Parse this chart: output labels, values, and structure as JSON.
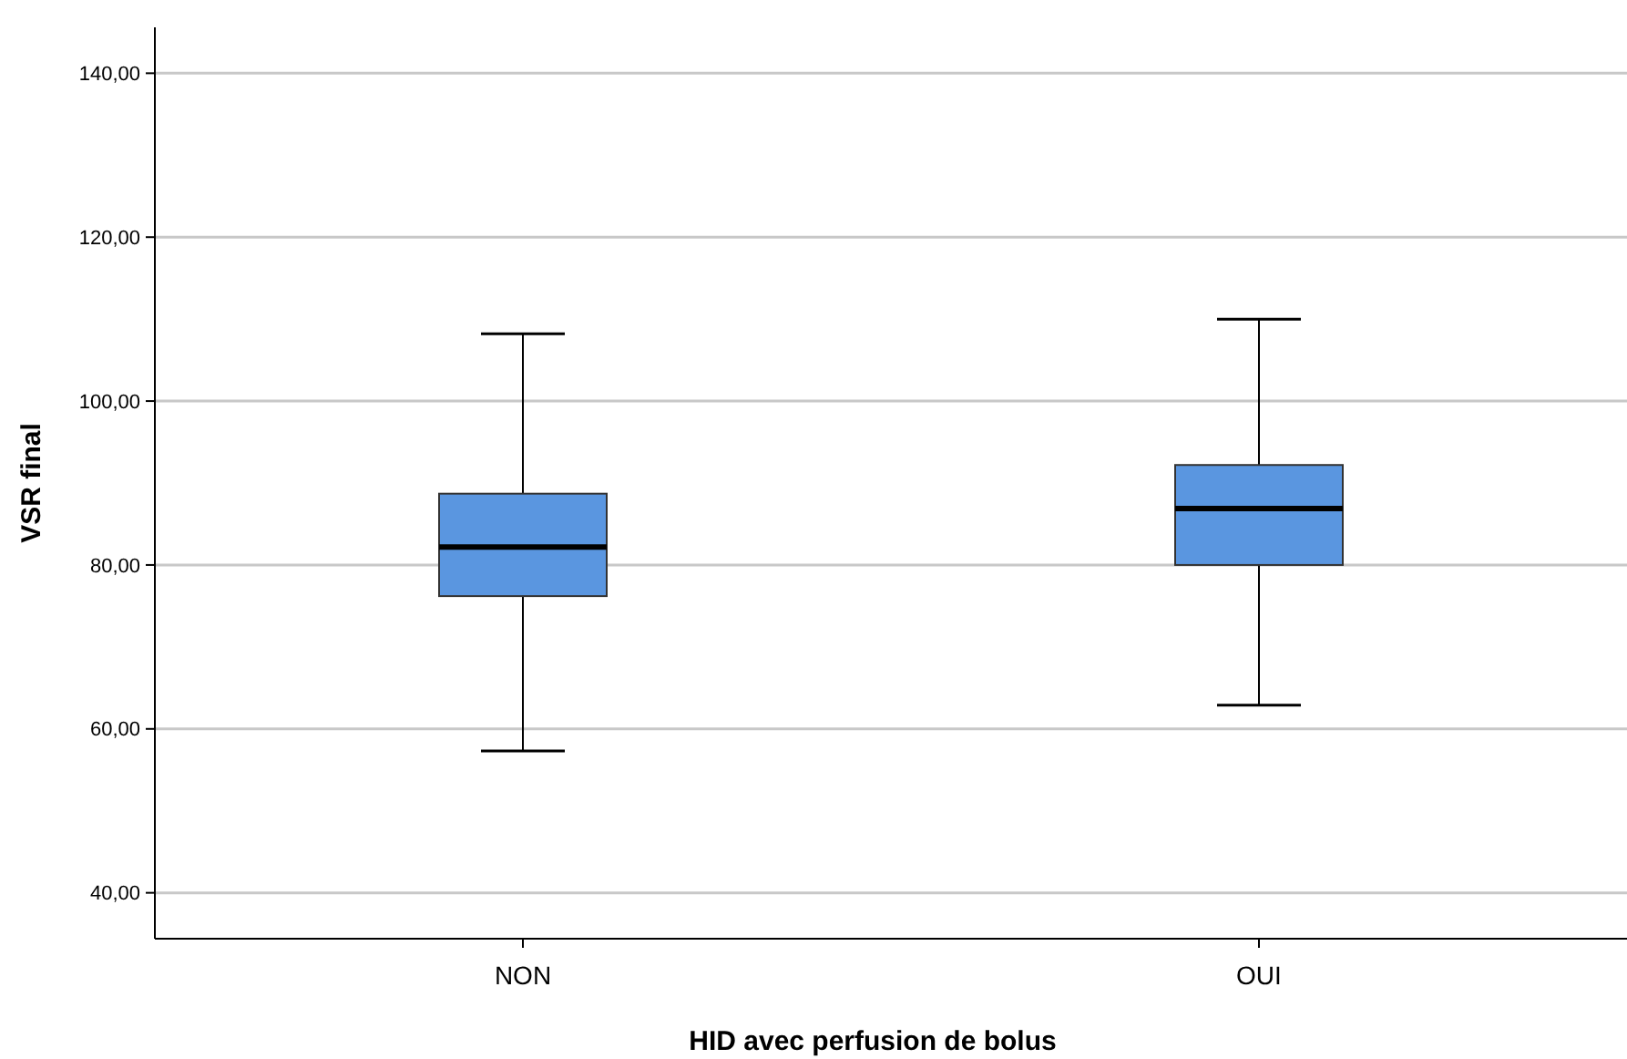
{
  "chart_data": {
    "type": "box",
    "xlabel": "HID avec perfusion de bolus",
    "ylabel": "VSR final",
    "categories": [
      "NON",
      "OUI"
    ],
    "color": "#5a96e0",
    "boxes": [
      {
        "low": 57.3,
        "q1": 76.2,
        "median": 82.2,
        "q3": 88.7,
        "high": 108.2
      },
      {
        "low": 62.9,
        "q1": 80.0,
        "median": 86.9,
        "q3": 92.2,
        "high": 110.0
      }
    ],
    "ylim": [
      34.4,
      145.6
    ],
    "yticks": [
      {
        "value": 40,
        "label": "40,00"
      },
      {
        "value": 60,
        "label": "60,00"
      },
      {
        "value": 80,
        "label": "80,00"
      },
      {
        "value": 100,
        "label": "100,00"
      },
      {
        "value": 120,
        "label": "120,00"
      },
      {
        "value": 140,
        "label": "140,00"
      }
    ],
    "grid": "y"
  }
}
